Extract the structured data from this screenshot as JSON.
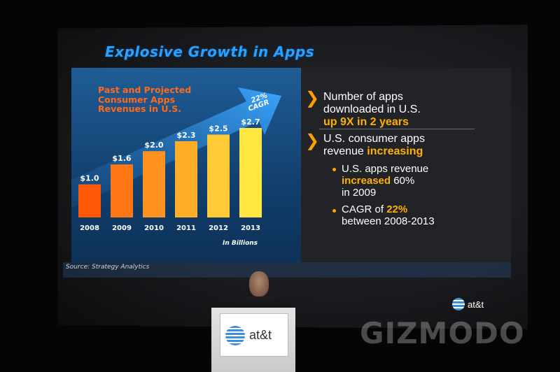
{
  "slide": {
    "title": "Explosive Growth in Apps",
    "source": "Source: Strategy Analytics",
    "brand": "at&t"
  },
  "chart_data": {
    "type": "bar",
    "title_lines": [
      "Past and Projected",
      "Consumer Apps",
      "Revenues in U.S."
    ],
    "categories": [
      "2008",
      "2009",
      "2010",
      "2011",
      "2012",
      "2013"
    ],
    "values": [
      1.0,
      1.6,
      2.0,
      2.3,
      2.5,
      2.7
    ],
    "value_labels": [
      "$1.0",
      "$1.6",
      "$2.0",
      "$2.3",
      "$2.5",
      "$2.7"
    ],
    "units_label": "In Billions",
    "arrow_label_lines": [
      "22%",
      "CAGR"
    ],
    "ylim": [
      0,
      2.7
    ],
    "grid": false,
    "colors": {
      "start": "#ff5a0a",
      "end": "#ffe640",
      "arrow": "#2d9bf0"
    }
  },
  "bullets": {
    "first": {
      "line1": "Number of apps",
      "line2": "downloaded in U.S.",
      "line3": "up 9X in 2 years"
    },
    "second": {
      "line1": "U.S. consumer apps",
      "line2_plain": "revenue ",
      "line2_highlight": "increasing"
    },
    "sub1": {
      "line1": "U.S. apps revenue",
      "line2_highlight": "increased",
      "line2_plain": " 60%",
      "line3": "in 2009"
    },
    "sub2": {
      "line1_plain": "CAGR of ",
      "line1_highlight": "22%",
      "line2": "between 2008-2013"
    }
  },
  "podium": {
    "brand": "at&t"
  },
  "watermark": "GIZMODO",
  "icons": {
    "bullet": "chevron-right-icon",
    "logo": "att-globe-icon"
  }
}
